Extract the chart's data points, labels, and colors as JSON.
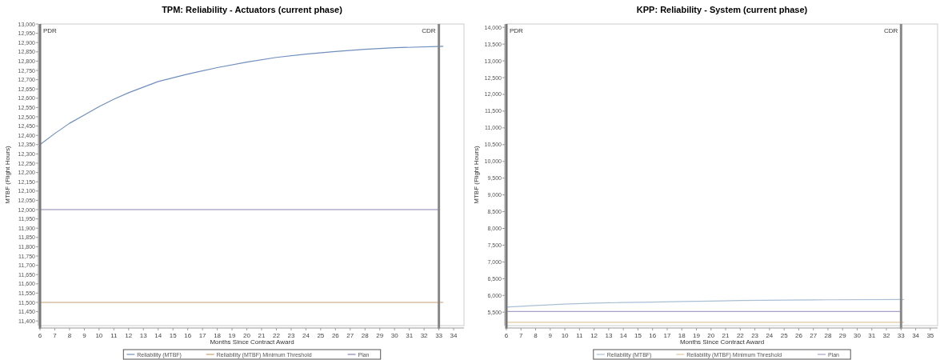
{
  "chart_data": [
    {
      "type": "line",
      "title": "TPM: Reliability - Actuators (current phase)",
      "xlabel": "Months Since Contract Award",
      "ylabel": "MTBF (Flight Hours)",
      "xlim": [
        6,
        34.7
      ],
      "xticks": [
        6,
        7,
        8,
        9,
        10,
        11,
        12,
        13,
        14,
        15,
        16,
        17,
        18,
        19,
        20,
        21,
        22,
        23,
        24,
        25,
        26,
        27,
        28,
        29,
        30,
        31,
        32,
        33,
        34
      ],
      "ylim": [
        11375,
        13000
      ],
      "yticks": [
        {
          "value": 11400,
          "label": "11,400"
        },
        {
          "value": 11450,
          "label": "11,450"
        },
        {
          "value": 11500,
          "label": "11,500"
        },
        {
          "value": 11550,
          "label": "11,550"
        },
        {
          "value": 11600,
          "label": "11,600"
        },
        {
          "value": 11650,
          "label": "11,650"
        },
        {
          "value": 11700,
          "label": "11,700"
        },
        {
          "value": 11750,
          "label": "11,750"
        },
        {
          "value": 11800,
          "label": "11,800"
        },
        {
          "value": 11850,
          "label": "11,850"
        },
        {
          "value": 11900,
          "label": "11,900"
        },
        {
          "value": 11950,
          "label": "11,950"
        },
        {
          "value": 12000,
          "label": "12,000"
        },
        {
          "value": 12050,
          "label": "12,050"
        },
        {
          "value": 12100,
          "label": "12,100"
        },
        {
          "value": 12150,
          "label": "12,150"
        },
        {
          "value": 12200,
          "label": "12,200"
        },
        {
          "value": 12250,
          "label": "12,250"
        },
        {
          "value": 12300,
          "label": "12,300"
        },
        {
          "value": 12350,
          "label": "12,350"
        },
        {
          "value": 12400,
          "label": "12,400"
        },
        {
          "value": 12450,
          "label": "12,450"
        },
        {
          "value": 12500,
          "label": "12,500"
        },
        {
          "value": 12550,
          "label": "12,550"
        },
        {
          "value": 12600,
          "label": "12,600"
        },
        {
          "value": 12650,
          "label": "12,650"
        },
        {
          "value": 12700,
          "label": "12,700"
        },
        {
          "value": 12750,
          "label": "12,750"
        },
        {
          "value": 12800,
          "label": "12,800"
        },
        {
          "value": 12850,
          "label": "12,850"
        },
        {
          "value": 12900,
          "label": "12,900"
        },
        {
          "value": 12950,
          "label": "12,950"
        },
        {
          "value": 13000,
          "label": "13,000"
        }
      ],
      "legend": "bottom",
      "grid": false,
      "marker": "none",
      "series": [
        {
          "name": "Reliability (MTBF)",
          "color": "#6f8fbf",
          "x": [
            6,
            7,
            8,
            9,
            10,
            11,
            12,
            14,
            16,
            18,
            20,
            22,
            24,
            26,
            28,
            30,
            33.3
          ],
          "values": [
            12350,
            12410,
            12465,
            12510,
            12555,
            12595,
            12630,
            12690,
            12730,
            12765,
            12795,
            12820,
            12838,
            12852,
            12864,
            12872,
            12880
          ]
        },
        {
          "name": "Reliability (MTBF) Minimum Threshold",
          "color": "#c8a070",
          "x": [
            6,
            33.3
          ],
          "values": [
            11500,
            11500
          ]
        },
        {
          "name": "Plan",
          "color": "#8c80b0",
          "x": [
            6,
            33
          ],
          "values": [
            12000,
            12000
          ]
        }
      ],
      "ref_lines": [
        {
          "axis": "x",
          "value": 6,
          "label": "PDR",
          "color": "#777777"
        },
        {
          "axis": "x",
          "value": 33,
          "label": "CDR",
          "color": "#888888"
        }
      ]
    },
    {
      "type": "line",
      "title": "KPP: Reliability - System (current phase)",
      "xlabel": "Months Since Contract Award",
      "ylabel": "MTBF (Flight Hours)",
      "xlim": [
        6,
        35.5
      ],
      "xticks": [
        6,
        7,
        8,
        9,
        10,
        11,
        12,
        13,
        14,
        15,
        16,
        17,
        18,
        19,
        20,
        21,
        22,
        23,
        24,
        25,
        26,
        27,
        28,
        29,
        30,
        31,
        32,
        33,
        34,
        35
      ],
      "ylim": [
        5100,
        14100
      ],
      "yticks": [
        {
          "value": 5500,
          "label": "5,500"
        },
        {
          "value": 6000,
          "label": "6,000"
        },
        {
          "value": 6500,
          "label": "6,500"
        },
        {
          "value": 7000,
          "label": "7,000"
        },
        {
          "value": 7500,
          "label": "7,500"
        },
        {
          "value": 8000,
          "label": "8,000"
        },
        {
          "value": 8500,
          "label": "8,500"
        },
        {
          "value": 9000,
          "label": "9,000"
        },
        {
          "value": 9500,
          "label": "9,500"
        },
        {
          "value": 10000,
          "label": "10,000"
        },
        {
          "value": 10500,
          "label": "10,500"
        },
        {
          "value": 11000,
          "label": "11,000"
        },
        {
          "value": 11500,
          "label": "11,500"
        },
        {
          "value": 12000,
          "label": "12,000"
        },
        {
          "value": 12500,
          "label": "12,500"
        },
        {
          "value": 13000,
          "label": "13,000"
        },
        {
          "value": 13500,
          "label": "13,500"
        },
        {
          "value": 14000,
          "label": "14,000"
        }
      ],
      "legend": "bottom",
      "grid": false,
      "marker": "none",
      "series": [
        {
          "name": "Reliability (MTBF)",
          "color": "#a9bfd6",
          "x": [
            6,
            8,
            10,
            12,
            14,
            16,
            18,
            20,
            22,
            25,
            28,
            33.2
          ],
          "values": [
            5650,
            5700,
            5740,
            5770,
            5790,
            5800,
            5820,
            5830,
            5850,
            5860,
            5870,
            5880
          ]
        },
        {
          "name": "Reliability (MTBF) Minimum Threshold",
          "color": "#e0c8a0",
          "x": [
            6,
            33.2
          ],
          "values": [
            5200,
            5200
          ]
        },
        {
          "name": "Plan",
          "color": "#a8a0c8",
          "x": [
            6,
            33
          ],
          "values": [
            5520,
            5520
          ]
        }
      ],
      "ref_lines": [
        {
          "axis": "x",
          "value": 6,
          "label": "PDR",
          "color": "#777777"
        },
        {
          "axis": "x",
          "value": 33,
          "label": "CDR",
          "color": "#888888"
        }
      ]
    }
  ]
}
